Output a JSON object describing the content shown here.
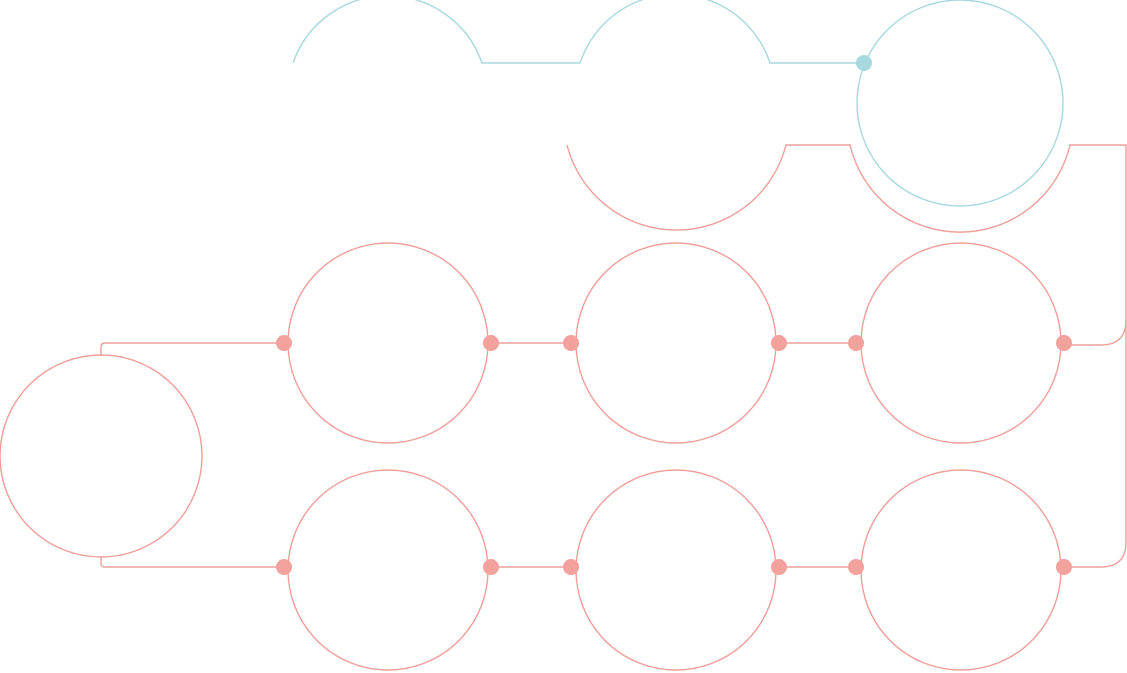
{
  "diagram": {
    "colors": {
      "top_path": "#a8d8e0",
      "main_path": "#ef9f9a",
      "top_node": "#a8d8e0",
      "main_node": "#f2a19d"
    }
  }
}
